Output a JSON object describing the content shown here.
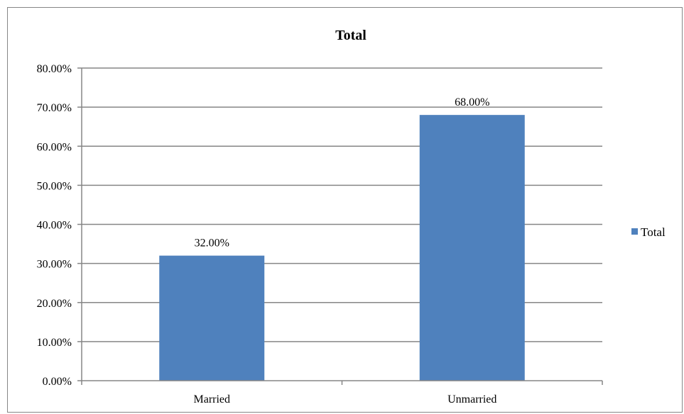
{
  "chart_data": {
    "type": "bar",
    "title": "Total",
    "categories": [
      "Married",
      "Unmarried"
    ],
    "series": [
      {
        "name": "Total",
        "values": [
          32,
          68
        ],
        "labels": [
          "32.00%",
          "68.00%"
        ]
      }
    ],
    "ylim": [
      0,
      80
    ],
    "yticks": [
      0,
      10,
      20,
      30,
      40,
      50,
      60,
      70,
      80
    ],
    "ytick_labels": [
      "0.00%",
      "10.00%",
      "20.00%",
      "30.00%",
      "40.00%",
      "50.00%",
      "60.00%",
      "70.00%",
      "80.00%"
    ],
    "grid": true,
    "legend_position": "right",
    "bar_color": "#4F81BD",
    "axis_color": "#868686"
  }
}
